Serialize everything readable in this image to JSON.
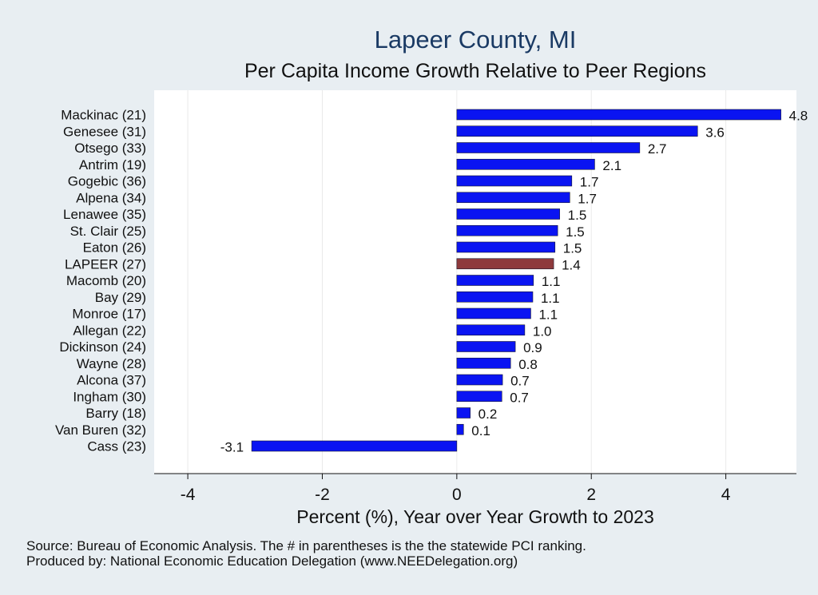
{
  "chart_data": {
    "type": "bar",
    "orientation": "horizontal",
    "title": "Lapeer County, MI",
    "subtitle": "Per Capita Income Growth Relative to Peer Regions",
    "xlabel": "Percent (%), Year over Year Growth to 2023",
    "ylabel": "",
    "xlim": [
      -4.5,
      5.05
    ],
    "xticks": [
      -4,
      -2,
      0,
      2,
      4
    ],
    "grid": true,
    "categories": [
      "Mackinac (21)",
      "Genesee (31)",
      "Otsego (33)",
      "Antrim (19)",
      "Gogebic (36)",
      "Alpena (34)",
      "Lenawee (35)",
      "St. Clair (25)",
      "Eaton (26)",
      "LAPEER (27)",
      "Macomb (20)",
      "Bay (29)",
      "Monroe (17)",
      "Allegan (22)",
      "Dickinson (24)",
      "Wayne (28)",
      "Alcona (37)",
      "Ingham (30)",
      "Barry (18)",
      "Van Buren (32)",
      "Cass (23)"
    ],
    "values": [
      4.82,
      3.58,
      2.72,
      2.05,
      1.71,
      1.68,
      1.53,
      1.5,
      1.46,
      1.44,
      1.14,
      1.13,
      1.1,
      1.01,
      0.87,
      0.8,
      0.68,
      0.67,
      0.2,
      0.1,
      -3.05
    ],
    "labels": [
      "4.8",
      "3.6",
      "2.7",
      "2.1",
      "1.7",
      "1.7",
      "1.5",
      "1.5",
      "1.5",
      "1.4",
      "1.1",
      "1.1",
      "1.1",
      "1.0",
      "0.9",
      "0.8",
      "0.7",
      "0.7",
      "0.2",
      "0.1",
      "-3.1"
    ],
    "highlight_index": 9,
    "colors": {
      "bar": "#0a14f2",
      "highlight": "#8e3a3c",
      "bar_edge": "#1a1a2e"
    },
    "notes": [
      "Source: Bureau of Economic Analysis. The # in parentheses is the the statewide PCI ranking.",
      "Produced by: National Economic Education Delegation (www.NEEDelegation.org)"
    ]
  }
}
